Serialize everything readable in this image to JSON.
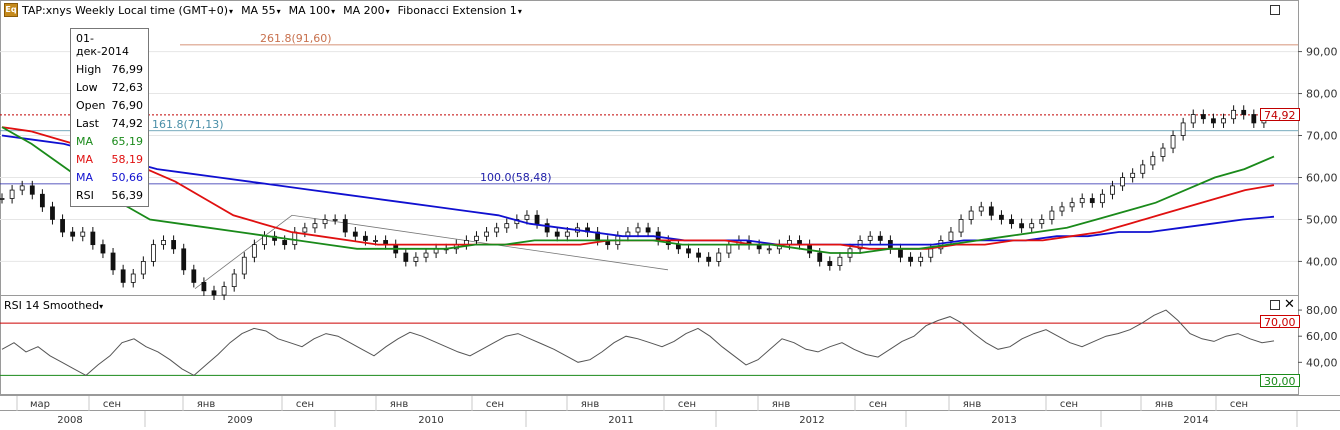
{
  "header": {
    "ticker": "TAP:xnys Weekly Local time (GMT+0)",
    "ticker_badge": "Eq",
    "ma55_label": "MA 55",
    "ma100_label": "MA 100",
    "ma200_label": "MA 200",
    "fib_label": "Fibonacci Extension 1",
    "caret": "▾"
  },
  "infobox": {
    "date": "01-дек-2014",
    "rows": [
      {
        "label": "High",
        "value": "76,99",
        "color": "#000000"
      },
      {
        "label": "Low",
        "value": "72,63",
        "color": "#000000"
      },
      {
        "label": "Open",
        "value": "76,90",
        "color": "#000000"
      },
      {
        "label": "Last",
        "value": "74,92",
        "color": "#000000"
      },
      {
        "label": "MA",
        "value": "65,19",
        "color": "#1a8a1a"
      },
      {
        "label": "MA",
        "value": "58,19",
        "color": "#e01010"
      },
      {
        "label": "MA",
        "value": "50,66",
        "color": "#1010d0"
      },
      {
        "label": "RSI",
        "value": "56,39",
        "color": "#000000"
      }
    ]
  },
  "rsi_panel": {
    "label": "RSI 14 Smoothed",
    "close_icon": "✕"
  },
  "price_tag": {
    "value": "74,92"
  },
  "rsi_tags": {
    "upper": "70,00",
    "lower": "30,00"
  },
  "colors": {
    "ma55": "#1a8a1a",
    "ma100": "#e01010",
    "ma200": "#1010d0",
    "fib_261": "#c8714e",
    "fib_161": "#4a8fa8",
    "fib_100": "#2222aa",
    "last_line": "#c00000",
    "rsi_upper": "#cc0000",
    "rsi_lower": "#1a8a1a"
  },
  "chart_data": {
    "type": "line",
    "price_axis": {
      "min": 32,
      "max": 98,
      "ticks": [
        40,
        50,
        60,
        70,
        80,
        90
      ],
      "tick_labels": [
        "40,00",
        "50,00",
        "60,00",
        "70,00",
        "80,00",
        "90,00"
      ]
    },
    "rsi_axis": {
      "min": 15,
      "max": 90,
      "ticks": [
        40,
        60,
        80
      ],
      "tick_labels": [
        "40,00",
        "60,00",
        "80,00"
      ],
      "overbought": 70,
      "oversold": 30
    },
    "time_labels": [
      "мар",
      "сен",
      "янв",
      "сен",
      "янв",
      "сен",
      "янв",
      "сен",
      "янв",
      "сен",
      "янв",
      "сен",
      "янв",
      "сен"
    ],
    "year_labels": [
      "2008",
      "2009",
      "2010",
      "2011",
      "2012",
      "2013",
      "2014"
    ],
    "fibonacci": [
      {
        "level": "261.8",
        "price": 91.6,
        "label": "261.8(91,60)"
      },
      {
        "level": "161.8",
        "price": 71.13,
        "label": "161.8(71,13)"
      },
      {
        "level": "100.0",
        "price": 58.48,
        "label": "100.0(58,48)"
      }
    ],
    "last_price": 74.92,
    "close_series": [
      55,
      57,
      58,
      56,
      53,
      50,
      47,
      46,
      47,
      44,
      42,
      38,
      35,
      37,
      40,
      44,
      45,
      43,
      38,
      35,
      33,
      32,
      34,
      37,
      41,
      44,
      46,
      45,
      44,
      47,
      48,
      49,
      50,
      50,
      47,
      46,
      45,
      45,
      44,
      42,
      40,
      41,
      42,
      43,
      43,
      44,
      45,
      46,
      47,
      48,
      49,
      50,
      51,
      49,
      47,
      46,
      47,
      48,
      47,
      45,
      44,
      46,
      47,
      48,
      47,
      45,
      44,
      43,
      42,
      41,
      40,
      42,
      44,
      45,
      44,
      43,
      43,
      44,
      45,
      44,
      42,
      40,
      39,
      41,
      43,
      45,
      46,
      45,
      43,
      41,
      40,
      41,
      43,
      45,
      47,
      50,
      52,
      53,
      51,
      50,
      49,
      48,
      49,
      50,
      52,
      53,
      54,
      55,
      54,
      56,
      58,
      60,
      61,
      63,
      65,
      67,
      70,
      73,
      75,
      74,
      73,
      74,
      76,
      75,
      73,
      75,
      74.92
    ],
    "ma55_series": [
      72,
      68,
      63,
      58,
      54,
      50,
      49,
      48,
      47,
      46,
      45,
      44,
      43,
      43,
      43,
      43,
      44,
      44,
      45,
      45,
      45,
      45,
      45,
      44,
      44,
      44,
      44,
      43,
      42,
      42,
      43,
      43,
      44,
      45,
      46,
      47,
      48,
      50,
      52,
      54,
      57,
      60,
      62,
      65
    ],
    "ma100_series": [
      72,
      71,
      69,
      67,
      65,
      62,
      59,
      55,
      51,
      49,
      47,
      46,
      45,
      44,
      44,
      44,
      44,
      44,
      44,
      44,
      44,
      45,
      45,
      45,
      45,
      45,
      44,
      44,
      44,
      44,
      43,
      43,
      43,
      44,
      44,
      45,
      45,
      46,
      47,
      49,
      51,
      53,
      55,
      57,
      58.19
    ],
    "ma200_series": [
      70,
      69,
      68,
      66,
      64,
      62,
      61,
      60,
      59,
      58,
      57,
      56,
      55,
      54,
      53,
      52,
      51,
      49,
      48,
      47,
      46,
      46,
      45,
      45,
      45,
      44,
      44,
      44,
      44,
      44,
      44,
      45,
      45,
      45,
      46,
      46,
      47,
      47,
      48,
      49,
      50,
      50.66
    ],
    "rsi_series": [
      50,
      55,
      48,
      52,
      45,
      40,
      35,
      30,
      38,
      45,
      55,
      58,
      52,
      48,
      42,
      35,
      30,
      38,
      46,
      55,
      62,
      66,
      64,
      58,
      55,
      52,
      58,
      62,
      60,
      55,
      50,
      45,
      52,
      58,
      63,
      60,
      56,
      52,
      48,
      45,
      50,
      55,
      60,
      62,
      58,
      54,
      50,
      45,
      40,
      42,
      48,
      55,
      60,
      58,
      55,
      52,
      56,
      62,
      66,
      60,
      52,
      45,
      38,
      42,
      50,
      58,
      55,
      50,
      48,
      52,
      55,
      50,
      46,
      44,
      50,
      56,
      60,
      68,
      72,
      75,
      70,
      62,
      55,
      50,
      52,
      58,
      62,
      65,
      60,
      55,
      52,
      56,
      60,
      62,
      65,
      70,
      76,
      80,
      72,
      62,
      58,
      56,
      60,
      62,
      58,
      55,
      56.39
    ]
  }
}
